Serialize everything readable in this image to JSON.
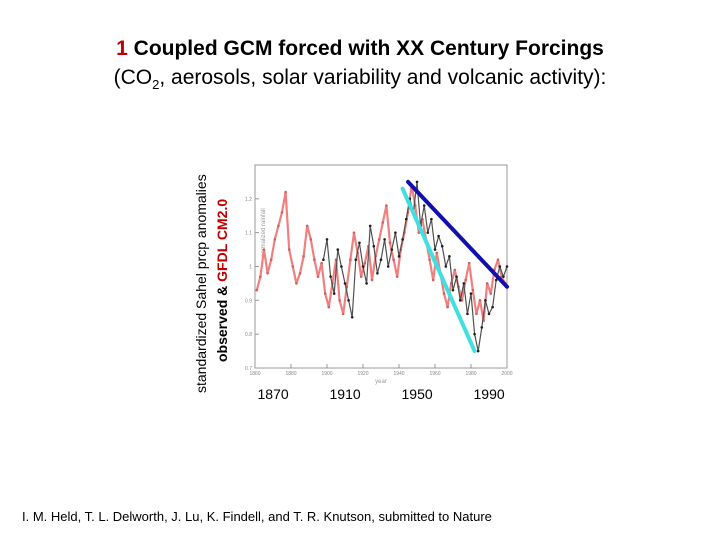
{
  "title": {
    "number": "1",
    "line1_text": "Coupled GCM forced with XX Century Forcings",
    "line2_prefix": "(CO",
    "line2_sub": "2",
    "line2_suffix": ", aerosols, solar variability and volcanic activity):"
  },
  "ylabel_outer": "standardized Sahel prcp anomalies",
  "ylabel_inner": {
    "part1": "observed & ",
    "part2": "GFDL CM2.0"
  },
  "credit": "I. M. Held, T. L. Delworth, J. Lu, K. Findell, and T. R. Knutson, submitted to Nature",
  "colors": {
    "model": "#f08080",
    "observed": "#505050",
    "trend_blue": "#1010b0",
    "trend_cyan": "#40e0e0",
    "title_accent": "#c00000"
  },
  "chart_data": {
    "type": "line",
    "inner_ylabel": "normalized rainfall",
    "inner_xlabel": "year",
    "xlim": [
      1860,
      2000
    ],
    "ylim": [
      0.7,
      1.3
    ],
    "x_ticks": [
      1860,
      1880,
      1900,
      1920,
      1940,
      1960,
      1980,
      2000
    ],
    "y_ticks": [
      0.7,
      0.8,
      0.9,
      1.0,
      1.1,
      1.2
    ],
    "y_tick_labels": [
      "0.7",
      "0.8",
      "0.9",
      "1",
      "1.1",
      "1.2"
    ],
    "big_x_labels": [
      {
        "value": 1870,
        "label": "1870"
      },
      {
        "value": 1910,
        "label": "1910"
      },
      {
        "value": 1950,
        "label": "1950"
      },
      {
        "value": 1990,
        "label": "1990"
      }
    ],
    "series": [
      {
        "key": "model",
        "x": [
          1861,
          1863,
          1865,
          1867,
          1869,
          1871,
          1873,
          1875,
          1877,
          1879,
          1881,
          1883,
          1885,
          1887,
          1889,
          1891,
          1893,
          1895,
          1897,
          1899,
          1901,
          1903,
          1905,
          1907,
          1909,
          1911,
          1913,
          1915,
          1917,
          1919,
          1921,
          1923,
          1925,
          1927,
          1929,
          1931,
          1933,
          1935,
          1937,
          1939,
          1941,
          1943,
          1945,
          1947,
          1949,
          1951,
          1953,
          1955,
          1957,
          1959,
          1961,
          1963,
          1965,
          1967,
          1969,
          1971,
          1973,
          1975,
          1977,
          1979,
          1981,
          1983,
          1985,
          1987,
          1989,
          1991,
          1993,
          1995,
          1997,
          1999
        ],
        "y": [
          0.93,
          0.97,
          1.05,
          0.98,
          1.02,
          1.08,
          1.12,
          1.16,
          1.22,
          1.05,
          1.0,
          0.95,
          0.98,
          1.03,
          1.12,
          1.08,
          1.02,
          0.97,
          1.01,
          0.92,
          0.88,
          0.95,
          1.02,
          0.9,
          0.86,
          0.94,
          1.02,
          1.1,
          1.04,
          0.97,
          1.01,
          1.06,
          0.96,
          1.03,
          1.08,
          1.13,
          1.18,
          1.07,
          1.02,
          0.97,
          1.05,
          1.1,
          1.16,
          1.24,
          1.18,
          1.1,
          1.14,
          1.08,
          1.02,
          0.96,
          1.04,
          0.98,
          0.92,
          0.88,
          0.95,
          0.99,
          0.94,
          0.9,
          0.96,
          1.01,
          0.93,
          0.86,
          0.9,
          0.84,
          0.95,
          0.92,
          0.99,
          1.02,
          0.97,
          0.95
        ]
      },
      {
        "key": "observed",
        "x": [
          1898,
          1900,
          1902,
          1904,
          1906,
          1908,
          1910,
          1912,
          1914,
          1916,
          1918,
          1920,
          1922,
          1924,
          1926,
          1928,
          1930,
          1932,
          1934,
          1936,
          1938,
          1940,
          1942,
          1944,
          1946,
          1948,
          1950,
          1952,
          1954,
          1956,
          1958,
          1960,
          1962,
          1964,
          1966,
          1968,
          1970,
          1972,
          1974,
          1976,
          1978,
          1980,
          1982,
          1984,
          1986,
          1988,
          1990,
          1992,
          1994,
          1996,
          1998,
          2000
        ],
        "y": [
          1.02,
          1.08,
          0.97,
          0.92,
          1.05,
          1.0,
          0.95,
          0.9,
          0.85,
          1.02,
          1.07,
          1.0,
          0.95,
          1.12,
          1.06,
          0.98,
          1.02,
          1.08,
          1.0,
          1.05,
          1.1,
          1.03,
          1.08,
          1.14,
          1.2,
          1.16,
          1.25,
          1.12,
          1.18,
          1.1,
          1.14,
          1.05,
          1.09,
          1.06,
          1.0,
          1.03,
          0.93,
          0.97,
          0.9,
          0.95,
          0.86,
          0.92,
          0.8,
          0.75,
          0.82,
          0.9,
          0.86,
          0.88,
          0.96,
          1.0,
          0.97,
          1.0
        ]
      }
    ],
    "trend_lines": [
      {
        "key": "blue",
        "x": [
          1945,
          2000
        ],
        "y": [
          1.25,
          0.94
        ]
      },
      {
        "key": "cyan",
        "x": [
          1942,
          1982
        ],
        "y": [
          1.23,
          0.75
        ]
      }
    ]
  }
}
